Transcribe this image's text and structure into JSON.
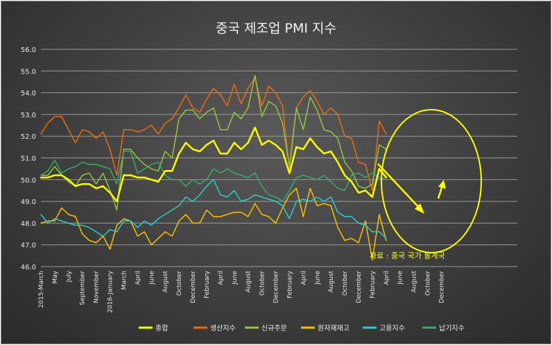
{
  "chart_data": {
    "type": "line",
    "title": "중국 제조업 PMI 지수",
    "ylim": [
      46.0,
      56.0
    ],
    "yticks": [
      "56.0",
      "55.0",
      "54.0",
      "53.0",
      "52.0",
      "51.0",
      "50.0",
      "49.0",
      "48.0",
      "47.0",
      "46.0"
    ],
    "ytick_values": [
      56,
      55,
      54,
      53,
      52,
      51,
      50,
      49,
      48,
      47,
      46
    ],
    "x_count": 70,
    "xtick_labels": [
      {
        "i": 0,
        "label": "2015-March"
      },
      {
        "i": 2,
        "label": "May"
      },
      {
        "i": 4,
        "label": "July"
      },
      {
        "i": 6,
        "label": "September"
      },
      {
        "i": 8,
        "label": "November"
      },
      {
        "i": 10,
        "label": "2016-January"
      },
      {
        "i": 12,
        "label": "March"
      },
      {
        "i": 14,
        "label": "April"
      },
      {
        "i": 16,
        "label": "June"
      },
      {
        "i": 18,
        "label": "August"
      },
      {
        "i": 20,
        "label": "October"
      },
      {
        "i": 22,
        "label": "December"
      },
      {
        "i": 24,
        "label": "February"
      },
      {
        "i": 26,
        "label": "April"
      },
      {
        "i": 28,
        "label": "June"
      },
      {
        "i": 30,
        "label": "August"
      },
      {
        "i": 32,
        "label": "October"
      },
      {
        "i": 34,
        "label": "December"
      },
      {
        "i": 36,
        "label": "February"
      },
      {
        "i": 38,
        "label": "April"
      },
      {
        "i": 40,
        "label": "June"
      },
      {
        "i": 42,
        "label": "August"
      },
      {
        "i": 44,
        "label": "October"
      },
      {
        "i": 46,
        "label": "December"
      },
      {
        "i": 48,
        "label": "February"
      },
      {
        "i": 50,
        "label": "April"
      },
      {
        "i": 52,
        "label": "June"
      },
      {
        "i": 54,
        "label": "August"
      },
      {
        "i": 56,
        "label": "October"
      },
      {
        "i": 58,
        "label": "December"
      }
    ],
    "series": [
      {
        "name": "종합",
        "color": "#ffff00",
        "width": 2.5,
        "values": [
          50.1,
          50.1,
          50.2,
          50.2,
          50.0,
          49.7,
          49.8,
          49.8,
          49.6,
          49.7,
          49.4,
          49.0,
          50.2,
          50.2,
          50.1,
          50.1,
          50.0,
          49.9,
          50.4,
          50.4,
          51.2,
          51.7,
          51.4,
          51.3,
          51.6,
          51.8,
          51.2,
          51.2,
          51.7,
          51.4,
          51.7,
          52.4,
          51.6,
          51.8,
          51.6,
          51.3,
          50.3,
          51.5,
          51.4,
          51.9,
          51.5,
          51.2,
          51.3,
          50.8,
          50.2,
          49.9,
          49.4,
          49.5,
          49.2,
          50.5,
          50.1
        ]
      },
      {
        "name": "생산지수",
        "color": "#f06a12",
        "width": 1.5,
        "values": [
          52.1,
          52.6,
          52.9,
          52.9,
          52.3,
          51.7,
          52.3,
          52.2,
          51.9,
          52.2,
          51.4,
          50.2,
          52.3,
          52.3,
          52.2,
          52.3,
          52.5,
          52.1,
          52.6,
          52.8,
          53.3,
          53.9,
          53.3,
          53.1,
          53.7,
          54.2,
          53.9,
          53.4,
          54.4,
          53.5,
          54.2,
          54.7,
          53.4,
          54.3,
          54.0,
          53.4,
          50.5,
          53.3,
          53.8,
          54.1,
          53.6,
          53.0,
          53.3,
          53.0,
          52.0,
          51.9,
          50.8,
          50.7,
          49.5,
          52.7,
          52.1
        ]
      },
      {
        "name": "신규주문",
        "color": "#92c83e",
        "width": 1.5,
        "values": [
          50.2,
          50.2,
          50.6,
          50.2,
          49.9,
          49.7,
          50.2,
          50.3,
          49.8,
          50.3,
          49.5,
          48.6,
          51.4,
          51.4,
          51.0,
          50.7,
          50.5,
          50.4,
          51.3,
          51.0,
          52.8,
          53.2,
          53.2,
          52.8,
          53.1,
          53.3,
          52.3,
          52.3,
          53.1,
          52.8,
          53.3,
          54.8,
          52.9,
          53.6,
          53.4,
          52.6,
          50.6,
          53.3,
          52.3,
          53.8,
          53.2,
          52.3,
          52.2,
          51.9,
          50.8,
          50.4,
          49.7,
          49.6,
          49.8,
          51.6,
          51.4
        ]
      },
      {
        "name": "원자재재고",
        "color": "#ffc000",
        "width": 1.5,
        "values": [
          48.0,
          48.1,
          48.1,
          48.7,
          48.4,
          48.3,
          47.5,
          47.2,
          47.1,
          47.4,
          46.8,
          47.9,
          48.2,
          48.1,
          47.4,
          47.6,
          47.0,
          47.3,
          47.6,
          47.4,
          48.1,
          48.4,
          48.0,
          48.0,
          48.6,
          48.3,
          48.3,
          48.4,
          48.5,
          48.5,
          48.3,
          48.9,
          48.4,
          48.3,
          48.0,
          48.7,
          49.3,
          49.6,
          48.3,
          49.6,
          48.8,
          48.9,
          48.8,
          47.8,
          47.2,
          47.3,
          47.1,
          48.1,
          46.3,
          48.4,
          47.2
        ]
      },
      {
        "name": "고용지수",
        "color": "#33cccc",
        "width": 1.5,
        "values": [
          48.4,
          48.0,
          48.2,
          48.1,
          48.0,
          47.9,
          47.9,
          47.8,
          47.6,
          47.4,
          47.7,
          47.6,
          48.1,
          48.1,
          47.8,
          48.1,
          47.9,
          48.2,
          48.4,
          48.6,
          48.8,
          49.2,
          49.0,
          49.3,
          49.7,
          50.0,
          49.3,
          49.2,
          49.5,
          49.0,
          49.1,
          49.3,
          49.2,
          49.1,
          49.0,
          48.8,
          48.2,
          49.0,
          49.1,
          49.0,
          49.2,
          49.0,
          49.2,
          48.5,
          48.3,
          48.3,
          48.0,
          47.9,
          47.6,
          47.6,
          47.3
        ]
      },
      {
        "name": "납기지수",
        "color": "#3daa6a",
        "width": 1.5,
        "values": [
          50.2,
          50.4,
          50.9,
          50.3,
          50.5,
          50.6,
          50.8,
          50.7,
          50.7,
          50.6,
          50.5,
          49.8,
          51.3,
          51.3,
          50.3,
          50.5,
          50.7,
          50.8,
          50.2,
          50.0,
          50.0,
          49.7,
          50.0,
          49.8,
          50.0,
          50.5,
          50.3,
          50.5,
          50.3,
          50.2,
          50.1,
          50.3,
          49.7,
          49.3,
          49.2,
          49.0,
          49.5,
          50.1,
          50.2,
          50.1,
          50.0,
          50.2,
          49.9,
          49.6,
          49.5,
          50.2,
          50.3,
          50.1,
          50.3,
          50.1,
          50.0
        ]
      }
    ],
    "annotation": "자료 : 중국 국가 통계국",
    "legend_position": "bottom"
  }
}
